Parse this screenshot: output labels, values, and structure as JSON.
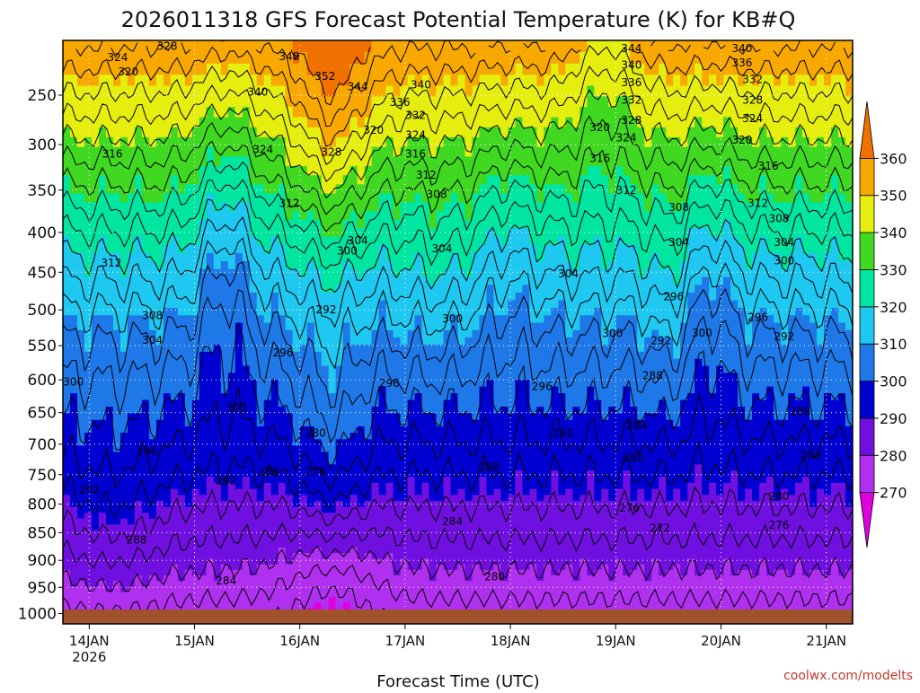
{
  "chart_data": {
    "type": "contour",
    "title": "2026011318 GFS Forecast Potential Temperature (K) for KB#Q",
    "xlabel": "Forecast Time (UTC)",
    "ylabel": "",
    "credit": "coolwx.com/modelts",
    "y_axis": {
      "scale": "pressure-inverted",
      "range": [
        1020,
        200
      ],
      "ticks": [
        250,
        300,
        350,
        400,
        450,
        500,
        550,
        600,
        650,
        700,
        750,
        800,
        850,
        900,
        950,
        1000
      ]
    },
    "x_axis": {
      "range": [
        "2026-01-13T18",
        "2026-01-21T06"
      ],
      "ticks": [
        {
          "label": "14JAN",
          "sub": "2026",
          "day": 14
        },
        {
          "label": "15JAN",
          "sub": "",
          "day": 15
        },
        {
          "label": "16JAN",
          "sub": "",
          "day": 16
        },
        {
          "label": "17JAN",
          "sub": "",
          "day": 17
        },
        {
          "label": "18JAN",
          "sub": "",
          "day": 18
        },
        {
          "label": "19JAN",
          "sub": "",
          "day": 19
        },
        {
          "label": "20JAN",
          "sub": "",
          "day": 20
        },
        {
          "label": "21JAN",
          "sub": "",
          "day": 21
        }
      ]
    },
    "colorbar": {
      "labels": [
        "360",
        "350",
        "340",
        "330",
        "320",
        "310",
        "300",
        "290",
        "280",
        "270"
      ],
      "bands": [
        {
          "from": 260,
          "to": 270,
          "color": "#e000e0"
        },
        {
          "from": 270,
          "to": 280,
          "color": "#b030f0"
        },
        {
          "from": 280,
          "to": 290,
          "color": "#7010e0"
        },
        {
          "from": 290,
          "to": 300,
          "color": "#0000d0"
        },
        {
          "from": 300,
          "to": 310,
          "color": "#1e78e8"
        },
        {
          "from": 310,
          "to": 320,
          "color": "#1ec8f0"
        },
        {
          "from": 320,
          "to": 330,
          "color": "#00e6a0"
        },
        {
          "from": 330,
          "to": 340,
          "color": "#40d820"
        },
        {
          "from": 340,
          "to": 350,
          "color": "#e6ee10"
        },
        {
          "from": 350,
          "to": 360,
          "color": "#f8a800"
        },
        {
          "from": 360,
          "to": 370,
          "color": "#f07000"
        }
      ]
    },
    "ground_color": "#a0522d",
    "contour_labels": [
      {
        "text": "328",
        "day": 14.74,
        "p": 205
      },
      {
        "text": "324",
        "day": 14.27,
        "p": 215
      },
      {
        "text": "320",
        "day": 14.37,
        "p": 228
      },
      {
        "text": "316",
        "day": 14.22,
        "p": 310
      },
      {
        "text": "312",
        "day": 14.21,
        "p": 438
      },
      {
        "text": "308",
        "day": 14.6,
        "p": 508
      },
      {
        "text": "304",
        "day": 14.6,
        "p": 542
      },
      {
        "text": "300",
        "day": 13.85,
        "p": 603
      },
      {
        "text": "300",
        "day": 15.4,
        "p": 642
      },
      {
        "text": "296",
        "day": 14.55,
        "p": 712
      },
      {
        "text": "292",
        "day": 14.0,
        "p": 775
      },
      {
        "text": "288",
        "day": 14.45,
        "p": 863
      },
      {
        "text": "284",
        "day": 15.3,
        "p": 938
      },
      {
        "text": "348",
        "day": 15.9,
        "p": 214
      },
      {
        "text": "352",
        "day": 16.24,
        "p": 232
      },
      {
        "text": "344",
        "day": 16.55,
        "p": 242
      },
      {
        "text": "340",
        "day": 17.15,
        "p": 240
      },
      {
        "text": "340",
        "day": 15.6,
        "p": 247
      },
      {
        "text": "336",
        "day": 16.95,
        "p": 257
      },
      {
        "text": "332",
        "day": 17.1,
        "p": 270
      },
      {
        "text": "320",
        "day": 16.7,
        "p": 285
      },
      {
        "text": "324",
        "day": 17.1,
        "p": 290
      },
      {
        "text": "324",
        "day": 15.65,
        "p": 305
      },
      {
        "text": "328",
        "day": 16.3,
        "p": 308
      },
      {
        "text": "316",
        "day": 17.1,
        "p": 310
      },
      {
        "text": "312",
        "day": 17.2,
        "p": 333
      },
      {
        "text": "308",
        "day": 17.3,
        "p": 355
      },
      {
        "text": "312",
        "day": 15.9,
        "p": 365
      },
      {
        "text": "304",
        "day": 16.55,
        "p": 410
      },
      {
        "text": "304",
        "day": 17.35,
        "p": 420
      },
      {
        "text": "300",
        "day": 16.45,
        "p": 423
      },
      {
        "text": "292",
        "day": 16.25,
        "p": 500
      },
      {
        "text": "300",
        "day": 17.45,
        "p": 512
      },
      {
        "text": "296",
        "day": 15.84,
        "p": 560
      },
      {
        "text": "296",
        "day": 16.85,
        "p": 605
      },
      {
        "text": "296",
        "day": 18.3,
        "p": 610
      },
      {
        "text": "292",
        "day": 18.5,
        "p": 682
      },
      {
        "text": "288",
        "day": 17.8,
        "p": 738
      },
      {
        "text": "280",
        "day": 16.15,
        "p": 682
      },
      {
        "text": "276",
        "day": 16.15,
        "p": 745
      },
      {
        "text": "288",
        "day": 15.7,
        "p": 745
      },
      {
        "text": "292",
        "day": 15.3,
        "p": 760
      },
      {
        "text": "284",
        "day": 17.45,
        "p": 830
      },
      {
        "text": "280",
        "day": 17.85,
        "p": 930
      },
      {
        "text": "304",
        "day": 18.55,
        "p": 452
      },
      {
        "text": "300",
        "day": 18.97,
        "p": 533
      },
      {
        "text": "344",
        "day": 19.15,
        "p": 207
      },
      {
        "text": "340",
        "day": 19.15,
        "p": 222
      },
      {
        "text": "336",
        "day": 19.15,
        "p": 238
      },
      {
        "text": "332",
        "day": 19.15,
        "p": 255
      },
      {
        "text": "328",
        "day": 19.15,
        "p": 275
      },
      {
        "text": "324",
        "day": 19.1,
        "p": 293
      },
      {
        "text": "320",
        "day": 18.85,
        "p": 282
      },
      {
        "text": "316",
        "day": 18.85,
        "p": 315
      },
      {
        "text": "312",
        "day": 19.1,
        "p": 350
      },
      {
        "text": "308",
        "day": 19.6,
        "p": 370
      },
      {
        "text": "304",
        "day": 19.6,
        "p": 412
      },
      {
        "text": "296",
        "day": 19.55,
        "p": 482
      },
      {
        "text": "292",
        "day": 19.43,
        "p": 543
      },
      {
        "text": "288",
        "day": 19.35,
        "p": 594
      },
      {
        "text": "284",
        "day": 19.2,
        "p": 670
      },
      {
        "text": "280",
        "day": 19.17,
        "p": 722
      },
      {
        "text": "276",
        "day": 19.13,
        "p": 807
      },
      {
        "text": "272",
        "day": 19.42,
        "p": 842
      },
      {
        "text": "300",
        "day": 19.82,
        "p": 532
      },
      {
        "text": "340",
        "day": 20.2,
        "p": 207
      },
      {
        "text": "336",
        "day": 20.2,
        "p": 220
      },
      {
        "text": "332",
        "day": 20.3,
        "p": 235
      },
      {
        "text": "328",
        "day": 20.3,
        "p": 255
      },
      {
        "text": "324",
        "day": 20.3,
        "p": 273
      },
      {
        "text": "320",
        "day": 20.2,
        "p": 295
      },
      {
        "text": "316",
        "day": 20.45,
        "p": 323
      },
      {
        "text": "312",
        "day": 20.35,
        "p": 365
      },
      {
        "text": "308",
        "day": 20.55,
        "p": 383
      },
      {
        "text": "304",
        "day": 20.6,
        "p": 412
      },
      {
        "text": "300",
        "day": 20.6,
        "p": 435
      },
      {
        "text": "296",
        "day": 20.35,
        "p": 510
      },
      {
        "text": "292",
        "day": 20.6,
        "p": 537
      },
      {
        "text": "288",
        "day": 20.75,
        "p": 648
      },
      {
        "text": "284",
        "day": 20.85,
        "p": 718
      },
      {
        "text": "280",
        "day": 20.55,
        "p": 787
      },
      {
        "text": "276",
        "day": 20.55,
        "p": 837
      }
    ]
  }
}
